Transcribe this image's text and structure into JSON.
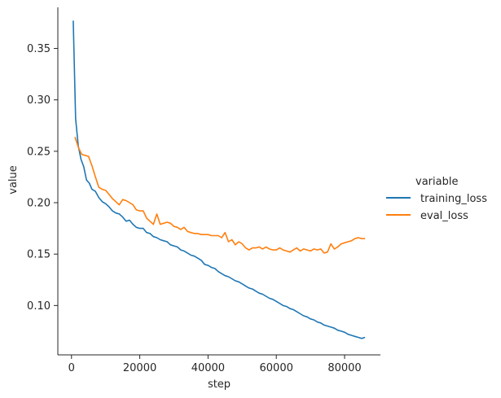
{
  "chart_data": {
    "type": "line",
    "title": "",
    "xlabel": "step",
    "ylabel": "value",
    "xlim": [
      -4000,
      90500
    ],
    "ylim": [
      0.052,
      0.39
    ],
    "x_ticks": [
      0,
      20000,
      40000,
      60000,
      80000
    ],
    "x_tick_labels": [
      "0",
      "20000",
      "40000",
      "60000",
      "80000"
    ],
    "y_ticks": [
      0.1,
      0.15,
      0.2,
      0.25,
      0.3,
      0.35
    ],
    "y_tick_labels": [
      "0.10",
      "0.15",
      "0.20",
      "0.25",
      "0.30",
      "0.35"
    ],
    "grid": false,
    "legend": {
      "title": "variable",
      "placement": "right outside"
    },
    "series": [
      {
        "name": "training_loss",
        "color": "#1f77b4",
        "x": [
          500,
          1200,
          2000,
          2800,
          3600,
          4400,
          5200,
          6000,
          7000,
          8000,
          9000,
          10000,
          11000,
          12000,
          13000,
          14000,
          15000,
          16000,
          17000,
          18000,
          19000,
          20000,
          21000,
          22000,
          23000,
          24000,
          25000,
          26000,
          27000,
          28000,
          29000,
          30000,
          31000,
          32000,
          33000,
          34000,
          35000,
          36000,
          37000,
          38000,
          39000,
          40000,
          41000,
          42000,
          43000,
          44000,
          45000,
          46000,
          47000,
          48000,
          49000,
          50000,
          51000,
          52000,
          53000,
          54000,
          55000,
          56000,
          57000,
          58000,
          59000,
          60000,
          61000,
          62000,
          63000,
          64000,
          65000,
          66000,
          67000,
          68000,
          69000,
          70000,
          71000,
          72000,
          73000,
          74000,
          75000,
          76000,
          77000,
          78000,
          79000,
          80000,
          81000,
          82000,
          83000,
          84000,
          85000,
          86000
        ],
        "values": [
          0.377,
          0.282,
          0.255,
          0.242,
          0.235,
          0.222,
          0.219,
          0.213,
          0.211,
          0.205,
          0.201,
          0.199,
          0.196,
          0.192,
          0.19,
          0.189,
          0.186,
          0.182,
          0.183,
          0.179,
          0.176,
          0.175,
          0.175,
          0.171,
          0.17,
          0.167,
          0.166,
          0.164,
          0.163,
          0.162,
          0.159,
          0.158,
          0.157,
          0.154,
          0.153,
          0.151,
          0.149,
          0.148,
          0.146,
          0.144,
          0.14,
          0.139,
          0.137,
          0.136,
          0.133,
          0.131,
          0.129,
          0.128,
          0.126,
          0.124,
          0.123,
          0.121,
          0.119,
          0.117,
          0.116,
          0.114,
          0.112,
          0.111,
          0.109,
          0.107,
          0.106,
          0.104,
          0.102,
          0.1,
          0.099,
          0.097,
          0.096,
          0.094,
          0.092,
          0.09,
          0.089,
          0.087,
          0.086,
          0.084,
          0.083,
          0.081,
          0.08,
          0.079,
          0.078,
          0.076,
          0.075,
          0.074,
          0.072,
          0.071,
          0.07,
          0.069,
          0.068,
          0.069
        ]
      },
      {
        "name": "eval_loss",
        "color": "#ff7f0e",
        "x": [
          1000,
          2000,
          3000,
          4000,
          5000,
          6000,
          7000,
          8000,
          9000,
          10000,
          11000,
          12000,
          13000,
          14000,
          15000,
          16000,
          17000,
          18000,
          19000,
          20000,
          21000,
          22000,
          23000,
          24000,
          25000,
          26000,
          27000,
          28000,
          29000,
          30000,
          31000,
          32000,
          33000,
          34000,
          35000,
          36000,
          37000,
          38000,
          39000,
          40000,
          41000,
          42000,
          43000,
          44000,
          45000,
          46000,
          47000,
          48000,
          49000,
          50000,
          51000,
          52000,
          53000,
          54000,
          55000,
          56000,
          57000,
          58000,
          59000,
          60000,
          61000,
          62000,
          63000,
          64000,
          65000,
          66000,
          67000,
          68000,
          69000,
          70000,
          71000,
          72000,
          73000,
          74000,
          75000,
          76000,
          77000,
          78000,
          79000,
          80000,
          81000,
          82000,
          83000,
          84000,
          85000,
          86000
        ],
        "values": [
          0.264,
          0.254,
          0.247,
          0.246,
          0.245,
          0.236,
          0.225,
          0.215,
          0.213,
          0.212,
          0.208,
          0.204,
          0.201,
          0.198,
          0.203,
          0.202,
          0.2,
          0.198,
          0.193,
          0.192,
          0.192,
          0.185,
          0.182,
          0.179,
          0.189,
          0.179,
          0.18,
          0.181,
          0.18,
          0.177,
          0.176,
          0.174,
          0.176,
          0.172,
          0.171,
          0.17,
          0.17,
          0.169,
          0.169,
          0.169,
          0.168,
          0.168,
          0.168,
          0.166,
          0.171,
          0.162,
          0.164,
          0.159,
          0.162,
          0.16,
          0.156,
          0.154,
          0.156,
          0.156,
          0.157,
          0.155,
          0.157,
          0.155,
          0.154,
          0.154,
          0.156,
          0.154,
          0.153,
          0.152,
          0.154,
          0.156,
          0.153,
          0.155,
          0.154,
          0.153,
          0.155,
          0.154,
          0.155,
          0.151,
          0.152,
          0.16,
          0.155,
          0.157,
          0.16,
          0.161,
          0.162,
          0.163,
          0.165,
          0.166,
          0.165,
          0.165
        ]
      }
    ]
  }
}
